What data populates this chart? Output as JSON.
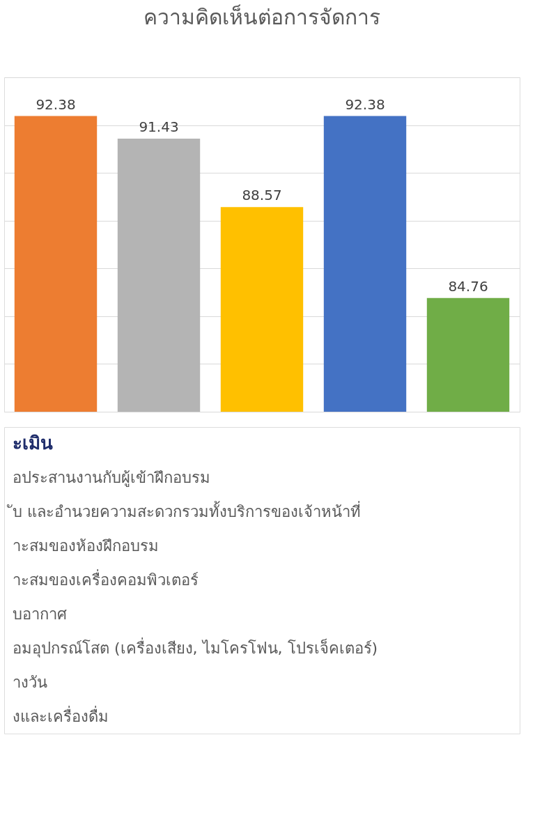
{
  "chart_data": {
    "type": "bar",
    "title": "ความคิดเห็นต่อการจัดการ",
    "categories": [
      null,
      null,
      null,
      null,
      null
    ],
    "values": [
      92.38,
      91.43,
      88.57,
      92.38,
      84.76
    ],
    "colors": [
      "#ed7d31",
      "#b4b4b4",
      "#ffc000",
      "#4472c4",
      "#70ad47"
    ],
    "ylim": [
      80,
      94
    ],
    "yticks": [
      {
        "value": 80,
        "label": null
      },
      {
        "value": 82,
        "label": null
      },
      {
        "value": 84,
        "label": null
      },
      {
        "value": 86,
        "label": null
      },
      {
        "value": 88,
        "label": null
      },
      {
        "value": 90,
        "label": null
      },
      {
        "value": 92,
        "label": null
      },
      {
        "value": 94,
        "label": null
      }
    ],
    "tick_labels": false,
    "grid": "y",
    "data_labels": true,
    "annotations": [
      "ะเมิน",
      "อประสานงานกับผู้เข้าฝึกอบรม",
      "ับ และอำนวยความสะดวกรวมทั้งบริการของเจ้าหน้าที่",
      "าะสมของห้องฝึกอบรม",
      "าะสมของเครื่องคอมพิวเตอร์",
      "บอากาศ",
      "อมอุปกรณ์โสต (เครื่องเสียง, ไมโครโฟน, โปรเจ็คเตอร์)",
      "างวัน",
      "งและเครื่องดื่ม"
    ]
  }
}
